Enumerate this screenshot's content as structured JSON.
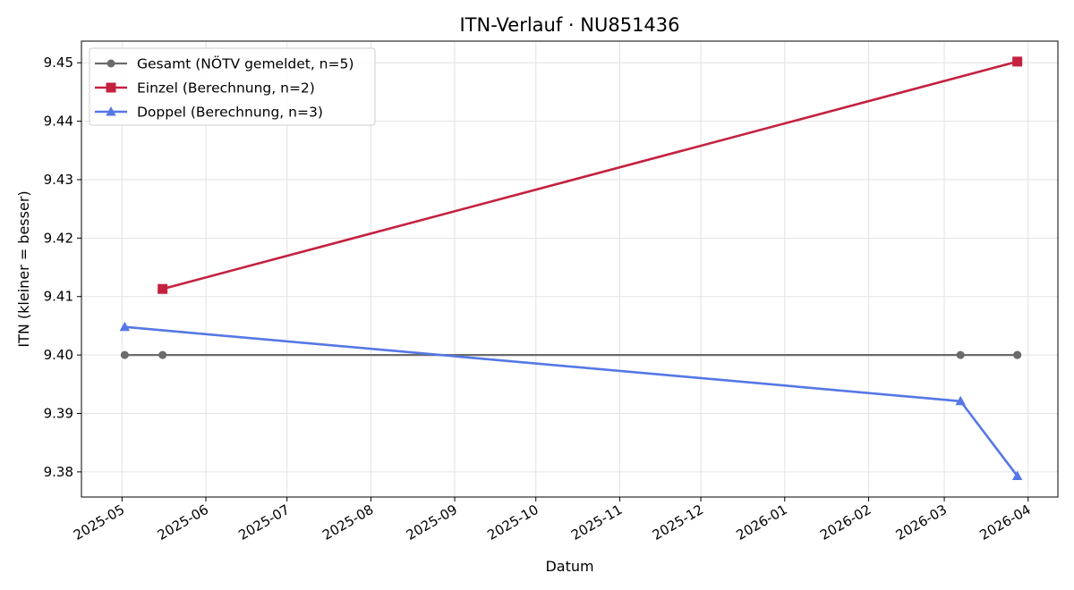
{
  "chart_data": {
    "type": "line",
    "title": "ITN-Verlauf · NU851436",
    "xlabel": "Datum",
    "ylabel": "ITN  (kleiner = besser)",
    "xlim": [
      "2025-04-16",
      "2026-04-12"
    ],
    "ylim": [
      9.3757,
      9.4537
    ],
    "x_ticks": [
      "2025-05-01",
      "2025-06-01",
      "2025-07-01",
      "2025-08-01",
      "2025-09-01",
      "2025-10-01",
      "2025-11-01",
      "2025-12-01",
      "2026-01-01",
      "2026-02-01",
      "2026-03-01",
      "2026-04-01"
    ],
    "x_tick_labels": [
      "2025-05",
      "2025-06",
      "2025-07",
      "2025-08",
      "2025-09",
      "2025-10",
      "2025-11",
      "2025-12",
      "2026-01",
      "2026-02",
      "2026-03",
      "2026-04"
    ],
    "y_ticks": [
      9.38,
      9.39,
      9.4,
      9.41,
      9.42,
      9.43,
      9.44,
      9.45
    ],
    "y_tick_labels": [
      "9.38",
      "9.39",
      "9.40",
      "9.41",
      "9.42",
      "9.43",
      "9.44",
      "9.45"
    ],
    "grid": true,
    "legend_position": "top-left",
    "series": [
      {
        "name": "Gesamt (NÖTV gemeldet, n=5)",
        "color": "#6b6b6b",
        "marker": "circle",
        "points": [
          {
            "x": "2025-05-02",
            "y": 9.4
          },
          {
            "x": "2025-05-16",
            "y": 9.4
          },
          {
            "x": "2026-03-07",
            "y": 9.4
          },
          {
            "x": "2026-03-28",
            "y": 9.4
          },
          {
            "x": "2026-03-28",
            "y": 9.4
          }
        ]
      },
      {
        "name": "Einzel (Berechnung, n=2)",
        "color": "#c4213f",
        "marker": "square",
        "points": [
          {
            "x": "2025-05-16",
            "y": 9.4113
          },
          {
            "x": "2026-03-28",
            "y": 9.4502
          }
        ]
      },
      {
        "name": "Doppel (Berechnung, n=3)",
        "color": "#5577e6",
        "marker": "triangle",
        "points": [
          {
            "x": "2025-05-02",
            "y": 9.4048
          },
          {
            "x": "2026-03-07",
            "y": 9.3921
          },
          {
            "x": "2026-03-28",
            "y": 9.3793
          }
        ]
      }
    ]
  }
}
